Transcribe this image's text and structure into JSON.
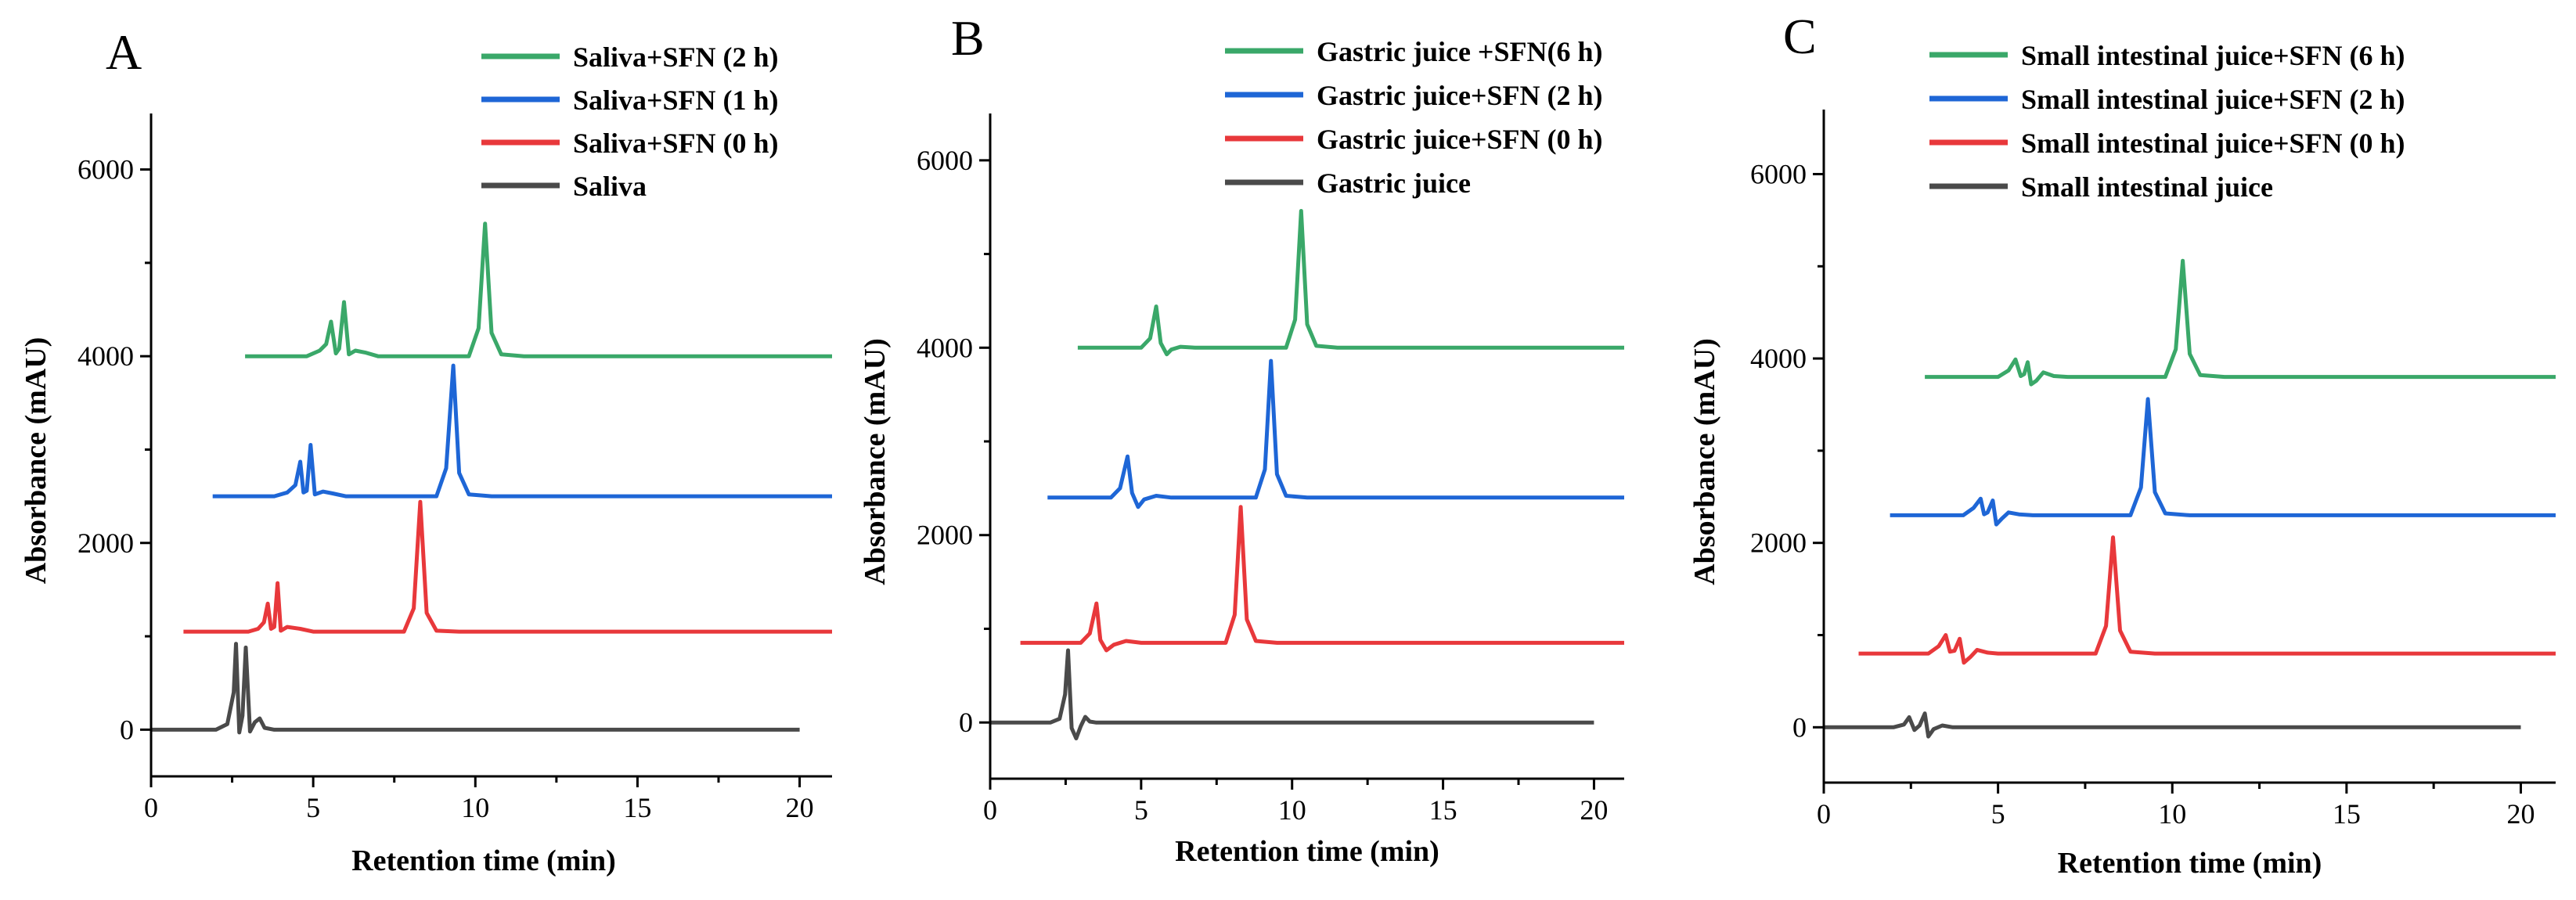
{
  "colors": {
    "green": "#3aa869",
    "blue": "#1e66d6",
    "red": "#e8383b",
    "dark": "#4a4a4a",
    "axis": "#000000"
  },
  "chart_data": [
    {
      "type": "line",
      "panel": "A",
      "xlabel": "Retention time (min)",
      "ylabel": "Absorbance (mAU)",
      "xlim": [
        0,
        21
      ],
      "ylim": [
        -500,
        6600
      ],
      "xticks": [
        0,
        5,
        10,
        15,
        20
      ],
      "yticks": [
        0,
        2000,
        4000,
        6000
      ],
      "legend_position": "top-right",
      "series": [
        {
          "name": "Saliva+SFN (2 h)",
          "color_key": "green",
          "x": [
            2.9,
            4.8,
            5.2,
            5.4,
            5.55,
            5.7,
            5.8,
            5.95,
            6.1,
            6.3,
            6.6,
            7.0,
            9.8,
            10.1,
            10.3,
            10.5,
            10.8,
            11.5,
            21
          ],
          "y": [
            4000,
            4000,
            4060,
            4130,
            4370,
            4030,
            4080,
            4580,
            4020,
            4060,
            4040,
            4000,
            4000,
            4300,
            5420,
            4250,
            4020,
            4000,
            4000
          ]
        },
        {
          "name": "Saliva+SFN (1 h)",
          "color_key": "blue",
          "x": [
            1.9,
            3.8,
            4.2,
            4.45,
            4.6,
            4.7,
            4.8,
            4.92,
            5.05,
            5.3,
            5.6,
            6.0,
            8.8,
            9.1,
            9.32,
            9.5,
            9.8,
            10.5,
            21
          ],
          "y": [
            2500,
            2500,
            2540,
            2620,
            2870,
            2540,
            2560,
            3050,
            2520,
            2550,
            2530,
            2500,
            2500,
            2800,
            3900,
            2750,
            2520,
            2500,
            2500
          ]
        },
        {
          "name": "Saliva+SFN (0 h)",
          "color_key": "red",
          "x": [
            1.0,
            3.0,
            3.3,
            3.48,
            3.6,
            3.7,
            3.8,
            3.9,
            4.0,
            4.2,
            4.6,
            5.0,
            7.8,
            8.1,
            8.3,
            8.5,
            8.8,
            9.5,
            21
          ],
          "y": [
            1050,
            1050,
            1080,
            1150,
            1350,
            1080,
            1100,
            1570,
            1060,
            1100,
            1080,
            1050,
            1050,
            1300,
            2440,
            1250,
            1060,
            1050,
            1050
          ]
        },
        {
          "name": "Saliva",
          "color_key": "dark",
          "x": [
            0,
            2.0,
            2.35,
            2.55,
            2.62,
            2.72,
            2.82,
            2.92,
            3.05,
            3.2,
            3.35,
            3.5,
            3.8,
            20
          ],
          "y": [
            0,
            0,
            60,
            400,
            920,
            -30,
            150,
            880,
            -20,
            80,
            120,
            20,
            0,
            0
          ]
        }
      ]
    },
    {
      "type": "line",
      "panel": "B",
      "xlabel": "Retention time (min)",
      "ylabel": "Absorbance (mAU)",
      "xlim": [
        0,
        21
      ],
      "ylim": [
        -600,
        6500
      ],
      "xticks": [
        0,
        5,
        10,
        15,
        20
      ],
      "yticks": [
        0,
        2000,
        4000,
        6000
      ],
      "legend_position": "top-right",
      "series": [
        {
          "name": "Gastric juice +SFN(6 h)",
          "color_key": "green",
          "x": [
            2.9,
            5.0,
            5.3,
            5.5,
            5.65,
            5.85,
            6.0,
            6.3,
            6.8,
            9.8,
            10.1,
            10.3,
            10.5,
            10.8,
            11.5,
            21
          ],
          "y": [
            4000,
            4000,
            4100,
            4440,
            4050,
            3930,
            3980,
            4010,
            4000,
            4000,
            4300,
            5460,
            4250,
            4020,
            4000,
            4000
          ]
        },
        {
          "name": "Gastric juice+SFN (2 h)",
          "color_key": "blue",
          "x": [
            1.9,
            4.0,
            4.3,
            4.55,
            4.7,
            4.9,
            5.1,
            5.5,
            6.0,
            8.8,
            9.1,
            9.3,
            9.5,
            9.8,
            10.5,
            21
          ],
          "y": [
            2400,
            2400,
            2500,
            2840,
            2450,
            2300,
            2380,
            2420,
            2400,
            2400,
            2700,
            3860,
            2650,
            2420,
            2400,
            2400
          ]
        },
        {
          "name": "Gastric juice+SFN (0 h)",
          "color_key": "red",
          "x": [
            1.0,
            3.0,
            3.3,
            3.52,
            3.65,
            3.85,
            4.1,
            4.5,
            5.0,
            7.8,
            8.1,
            8.3,
            8.5,
            8.8,
            9.5,
            21
          ],
          "y": [
            850,
            850,
            950,
            1270,
            880,
            770,
            830,
            870,
            850,
            850,
            1150,
            2300,
            1100,
            870,
            850,
            850
          ]
        },
        {
          "name": "Gastric juice",
          "color_key": "dark",
          "x": [
            0,
            2.0,
            2.3,
            2.48,
            2.58,
            2.7,
            2.85,
            3.0,
            3.15,
            3.3,
            3.5,
            20
          ],
          "y": [
            0,
            0,
            40,
            300,
            770,
            -60,
            -170,
            -40,
            60,
            10,
            0,
            0
          ]
        }
      ]
    },
    {
      "type": "line",
      "panel": "C",
      "xlabel": "Retention time (min)",
      "ylabel": "Absorbance (mAU)",
      "xlim": [
        0,
        21
      ],
      "ylim": [
        -600,
        6700
      ],
      "xticks": [
        0,
        5,
        10,
        15,
        20
      ],
      "yticks": [
        0,
        2000,
        4000,
        6000
      ],
      "legend_position": "top-right",
      "series": [
        {
          "name": "Small intestinal juice+SFN (6 h)",
          "color_key": "green",
          "x": [
            2.9,
            5.0,
            5.3,
            5.5,
            5.65,
            5.75,
            5.85,
            5.95,
            6.1,
            6.3,
            6.6,
            7.0,
            9.8,
            10.1,
            10.3,
            10.5,
            10.8,
            11.5,
            21
          ],
          "y": [
            3800,
            3800,
            3870,
            3990,
            3810,
            3830,
            3960,
            3720,
            3760,
            3850,
            3810,
            3800,
            3800,
            4100,
            5060,
            4050,
            3820,
            3800,
            3800
          ]
        },
        {
          "name": "Small intestinal juice+SFN (2 h)",
          "color_key": "blue",
          "x": [
            1.9,
            4.0,
            4.3,
            4.5,
            4.6,
            4.7,
            4.85,
            4.95,
            5.1,
            5.3,
            5.6,
            6.0,
            8.8,
            9.1,
            9.3,
            9.5,
            9.8,
            10.5,
            21
          ],
          "y": [
            2300,
            2300,
            2380,
            2480,
            2310,
            2330,
            2460,
            2200,
            2260,
            2330,
            2310,
            2300,
            2300,
            2600,
            3560,
            2550,
            2320,
            2300,
            2300
          ]
        },
        {
          "name": "Small intestinal juice+SFN (0 h)",
          "color_key": "red",
          "x": [
            1.0,
            3.0,
            3.3,
            3.5,
            3.62,
            3.75,
            3.9,
            4.02,
            4.2,
            4.4,
            4.7,
            5.0,
            7.8,
            8.1,
            8.3,
            8.5,
            8.8,
            9.5,
            21
          ],
          "y": [
            800,
            800,
            880,
            1000,
            820,
            830,
            960,
            700,
            760,
            840,
            810,
            800,
            800,
            1100,
            2060,
            1050,
            820,
            800,
            800
          ]
        },
        {
          "name": "Small intestinal juice",
          "color_key": "dark",
          "x": [
            0,
            2.0,
            2.3,
            2.45,
            2.6,
            2.75,
            2.9,
            3.0,
            3.15,
            3.4,
            3.7,
            20
          ],
          "y": [
            0,
            0,
            30,
            110,
            -30,
            20,
            150,
            -100,
            -20,
            20,
            0,
            0
          ]
        }
      ]
    }
  ]
}
